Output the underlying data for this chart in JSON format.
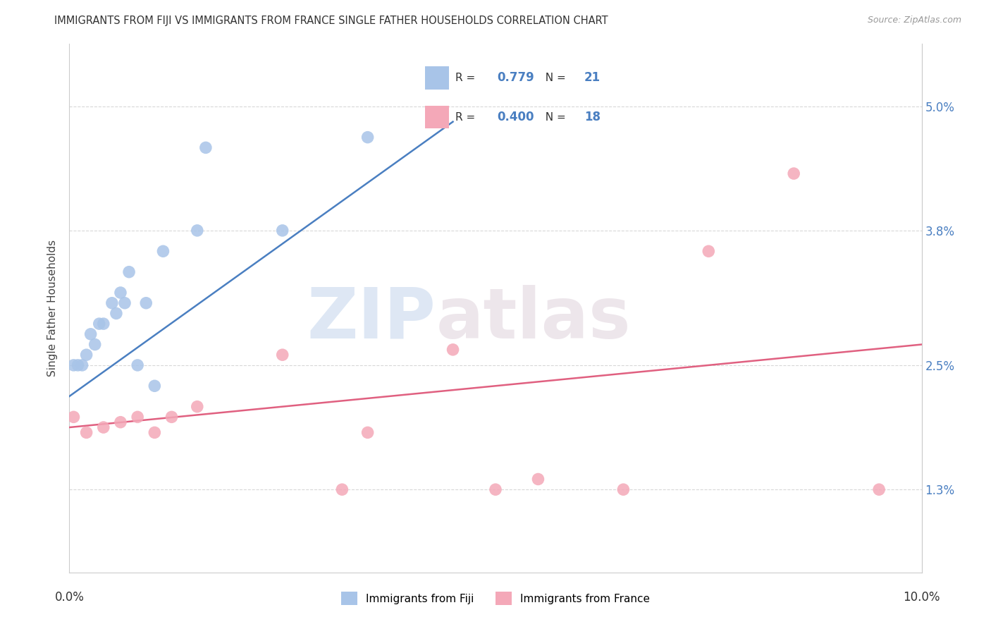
{
  "title": "IMMIGRANTS FROM FIJI VS IMMIGRANTS FROM FRANCE SINGLE FATHER HOUSEHOLDS CORRELATION CHART",
  "source": "Source: ZipAtlas.com",
  "ylabel": "Single Father Households",
  "ytick_values": [
    1.3,
    2.5,
    3.8,
    5.0
  ],
  "xlim": [
    0.0,
    10.0
  ],
  "ylim": [
    0.5,
    5.6
  ],
  "fiji_R": "0.779",
  "fiji_N": "21",
  "france_R": "0.400",
  "france_N": "18",
  "fiji_color": "#a8c4e8",
  "france_color": "#f4a8b8",
  "fiji_line_color": "#4a7fc1",
  "france_line_color": "#e06080",
  "fiji_points_x": [
    0.05,
    0.1,
    0.15,
    0.2,
    0.25,
    0.3,
    0.35,
    0.4,
    0.5,
    0.55,
    0.6,
    0.65,
    0.7,
    0.8,
    0.9,
    1.0,
    1.1,
    1.5,
    1.6,
    2.5,
    3.5
  ],
  "fiji_points_y": [
    2.5,
    2.5,
    2.5,
    2.6,
    2.8,
    2.7,
    2.9,
    2.9,
    3.1,
    3.0,
    3.2,
    3.1,
    3.4,
    2.5,
    3.1,
    2.3,
    3.6,
    3.8,
    4.6,
    3.8,
    4.7
  ],
  "france_points_x": [
    0.05,
    0.2,
    0.4,
    0.6,
    0.8,
    1.0,
    1.2,
    1.5,
    2.5,
    3.2,
    3.5,
    4.5,
    5.0,
    5.5,
    6.5,
    7.5,
    8.5,
    9.5
  ],
  "france_points_y": [
    2.0,
    1.85,
    1.9,
    1.95,
    2.0,
    1.85,
    2.0,
    2.1,
    2.6,
    1.3,
    1.85,
    2.65,
    1.3,
    1.4,
    1.3,
    3.6,
    4.35,
    1.3
  ],
  "fiji_line_x": [
    0.0,
    4.5
  ],
  "fiji_line_y": [
    2.2,
    4.85
  ],
  "france_line_x": [
    0.0,
    10.0
  ],
  "france_line_y": [
    1.9,
    2.7
  ],
  "legend_label_fiji": "Immigrants from Fiji",
  "legend_label_france": "Immigrants from France",
  "background_color": "#ffffff",
  "grid_color": "#d8d8d8",
  "watermark_zip": "ZIP",
  "watermark_atlas": "atlas"
}
